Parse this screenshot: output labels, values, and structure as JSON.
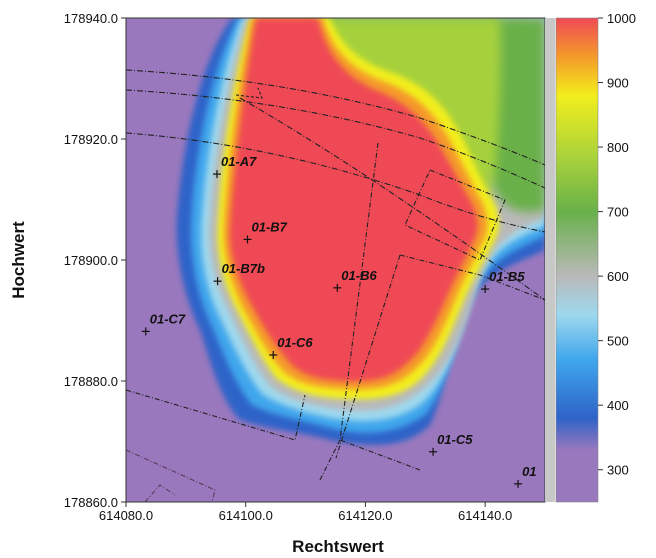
{
  "chart_data": {
    "type": "heatmap",
    "title": "",
    "xlabel": "Rechtswert",
    "ylabel": "Hochwert",
    "xlim": [
      614080.0,
      614150.0
    ],
    "ylim": [
      178860.0,
      178940.0
    ],
    "x_ticks": [
      614080.0,
      614100.0,
      614120.0,
      614140.0
    ],
    "x_tick_labels": [
      "614080.0",
      "614100.0",
      "614120.0",
      "614140.0"
    ],
    "y_ticks": [
      178940.0,
      178920.0,
      178900.0,
      178880.0,
      178860.0
    ],
    "y_tick_labels": [
      "178940.0",
      "178920.0",
      "178900.0",
      "178880.0",
      "178860.0"
    ],
    "colorbar": {
      "range": [
        250,
        1000
      ],
      "ticks": [
        1000,
        900,
        800,
        700,
        600,
        500,
        400,
        300
      ],
      "tick_labels": [
        "1000",
        "900",
        "800",
        "700",
        "600",
        "500",
        "400",
        "300"
      ],
      "colors": [
        {
          "value": 250,
          "color": "#9a78be"
        },
        {
          "value": 330,
          "color": "#9a78be"
        },
        {
          "value": 380,
          "color": "#2f63c8"
        },
        {
          "value": 470,
          "color": "#3fa6ec"
        },
        {
          "value": 540,
          "color": "#9ed8ee"
        },
        {
          "value": 600,
          "color": "#b9b9b9"
        },
        {
          "value": 700,
          "color": "#69b04a"
        },
        {
          "value": 780,
          "color": "#a6d13c"
        },
        {
          "value": 880,
          "color": "#f2ee1c"
        },
        {
          "value": 940,
          "color": "#f59a2a"
        },
        {
          "value": 1000,
          "color": "#ef4a55"
        }
      ]
    },
    "points": [
      {
        "label": "01-A7",
        "x": 614095.2,
        "y": 178914.2
      },
      {
        "label": "01-B7",
        "x": 614100.3,
        "y": 178903.4
      },
      {
        "label": "01-B7b",
        "x": 614095.3,
        "y": 178896.5
      },
      {
        "label": "01-B6",
        "x": 614115.3,
        "y": 178895.4
      },
      {
        "label": "01-B5",
        "x": 614140.0,
        "y": 178895.2
      },
      {
        "label": "01-C7",
        "x": 614083.3,
        "y": 178888.2
      },
      {
        "label": "01-C6",
        "x": 614104.6,
        "y": 178884.3
      },
      {
        "label": "01-C5",
        "x": 614131.3,
        "y": 178868.3
      },
      {
        "label": "01",
        "x": 614145.5,
        "y": 178863.0
      }
    ]
  }
}
